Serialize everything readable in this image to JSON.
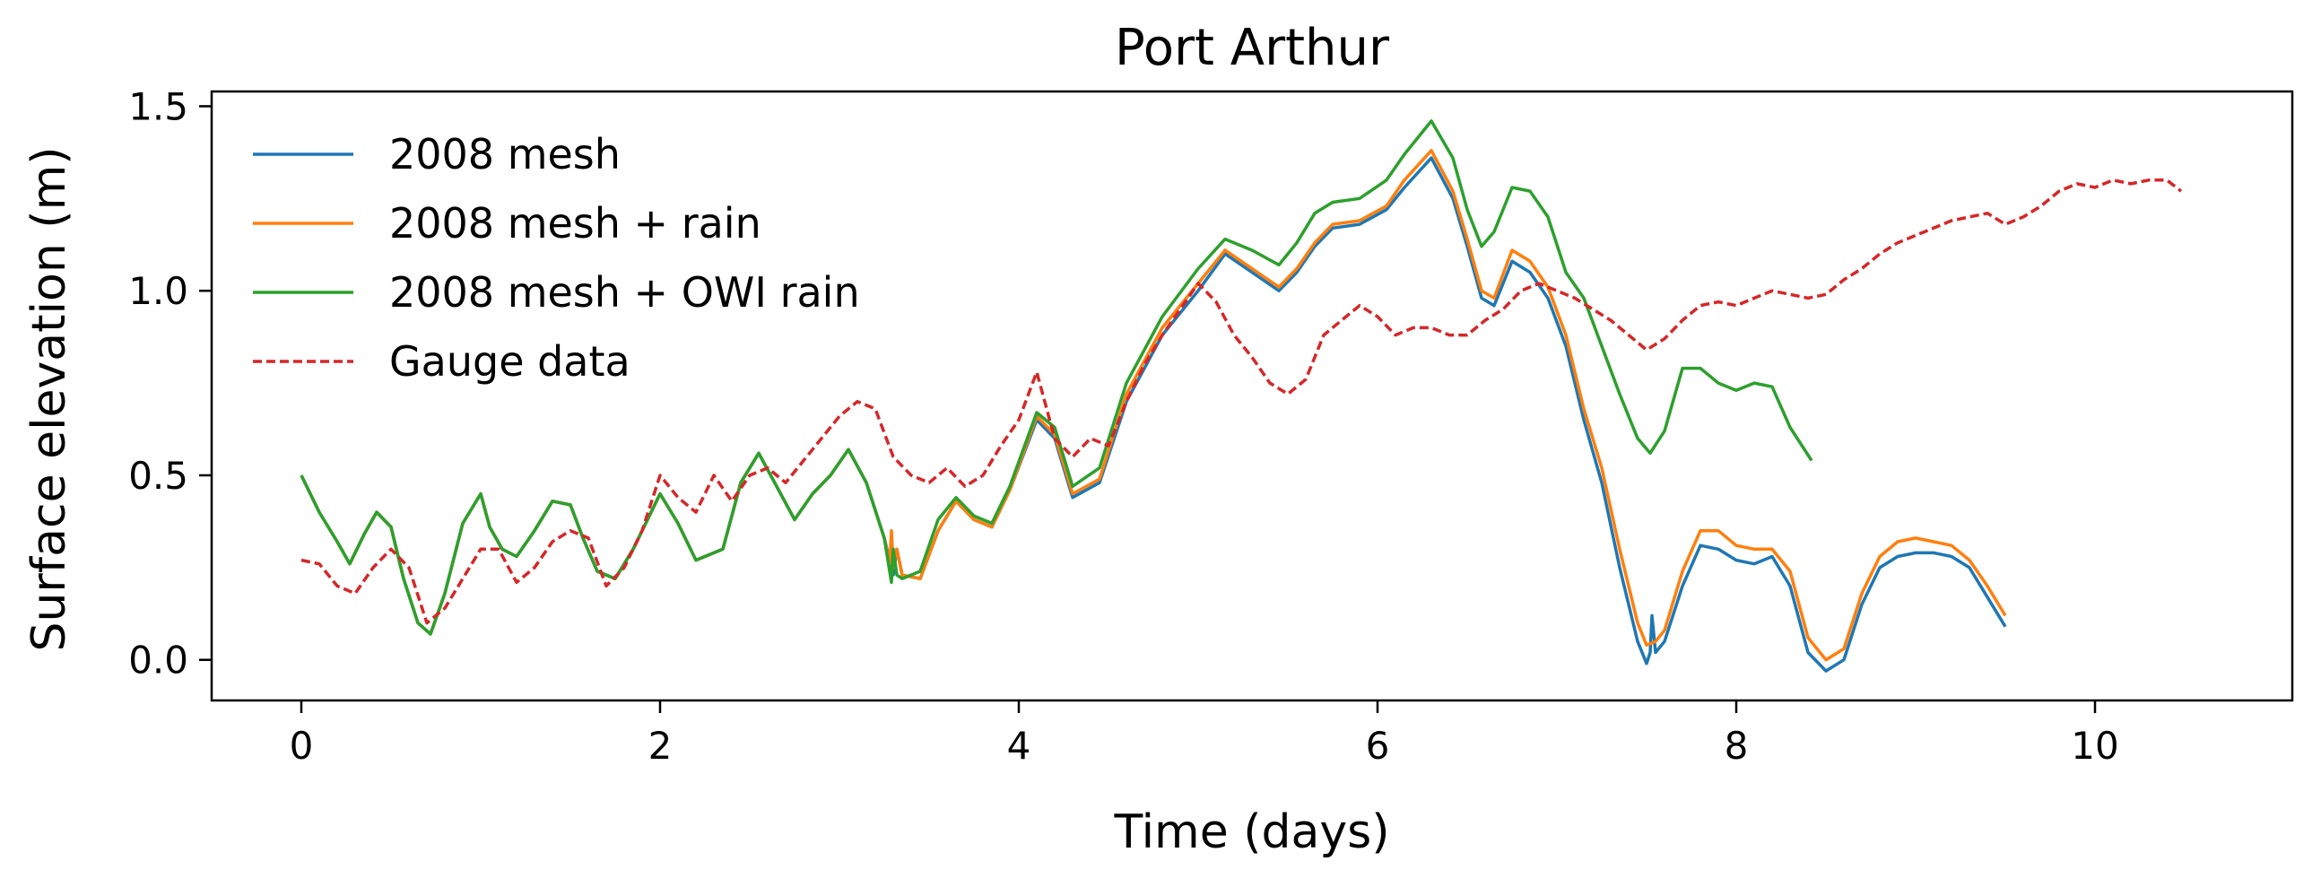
{
  "chart_data": {
    "type": "line",
    "title": "Port Arthur",
    "xlabel": "Time (days)",
    "ylabel": "Surface elevation (m)",
    "xlim": [
      -0.5,
      11.1
    ],
    "ylim": [
      -0.11,
      1.54
    ],
    "xticks": [
      0,
      2,
      4,
      6,
      8,
      10
    ],
    "yticks": [
      0.0,
      0.5,
      1.0,
      1.5
    ],
    "xtick_labels": [
      "0",
      "2",
      "4",
      "6",
      "8",
      "10"
    ],
    "ytick_labels": [
      "0.0",
      "0.5",
      "1.0",
      "1.5"
    ],
    "grid": false,
    "legend_position": "upper-left",
    "series": [
      {
        "name": "2008 mesh",
        "color": "#1f77b4",
        "style": "solid",
        "x": [
          0.0,
          0.1,
          0.2,
          0.27,
          0.35,
          0.42,
          0.5,
          0.57,
          0.65,
          0.72,
          0.8,
          0.9,
          1.0,
          1.05,
          1.12,
          1.2,
          1.3,
          1.4,
          1.5,
          1.57,
          1.65,
          1.75,
          1.85,
          2.0,
          2.1,
          2.2,
          2.35,
          2.45,
          2.55,
          2.65,
          2.75,
          2.85,
          2.95,
          3.05,
          3.15,
          3.25,
          3.29,
          3.3,
          3.32,
          3.35,
          3.45,
          3.55,
          3.65,
          3.75,
          3.85,
          3.95,
          4.1,
          4.2,
          4.3,
          4.45,
          4.6,
          4.8,
          5.0,
          5.15,
          5.3,
          5.45,
          5.55,
          5.65,
          5.75,
          5.9,
          6.05,
          6.15,
          6.3,
          6.42,
          6.5,
          6.58,
          6.65,
          6.75,
          6.85,
          6.95,
          7.05,
          7.15,
          7.25,
          7.35,
          7.45,
          7.5,
          7.52,
          7.53,
          7.55,
          7.6,
          7.7,
          7.8,
          7.9,
          8.0,
          8.1,
          8.2,
          8.3,
          8.4,
          8.5,
          8.6,
          8.7,
          8.8,
          8.9,
          9.0,
          9.1,
          9.2,
          9.3,
          9.4,
          9.5
        ],
        "y": [
          0.5,
          0.4,
          0.32,
          0.26,
          0.34,
          0.4,
          0.36,
          0.22,
          0.1,
          0.07,
          0.18,
          0.37,
          0.45,
          0.36,
          0.3,
          0.28,
          0.35,
          0.43,
          0.42,
          0.33,
          0.24,
          0.22,
          0.3,
          0.45,
          0.37,
          0.27,
          0.3,
          0.48,
          0.56,
          0.47,
          0.38,
          0.45,
          0.5,
          0.57,
          0.48,
          0.33,
          0.25,
          0.23,
          0.3,
          0.23,
          0.22,
          0.35,
          0.43,
          0.38,
          0.36,
          0.46,
          0.65,
          0.6,
          0.44,
          0.48,
          0.7,
          0.88,
          1.0,
          1.1,
          1.05,
          1.0,
          1.05,
          1.12,
          1.17,
          1.18,
          1.22,
          1.28,
          1.36,
          1.25,
          1.12,
          0.98,
          0.96,
          1.08,
          1.05,
          0.98,
          0.85,
          0.65,
          0.48,
          0.25,
          0.05,
          -0.01,
          0.02,
          0.12,
          0.02,
          0.05,
          0.2,
          0.31,
          0.3,
          0.27,
          0.26,
          0.28,
          0.2,
          0.02,
          -0.03,
          0.0,
          0.15,
          0.25,
          0.28,
          0.29,
          0.29,
          0.28,
          0.25,
          0.17,
          0.09
        ]
      },
      {
        "name": "2008 mesh + rain",
        "color": "#ff7f0e",
        "style": "solid",
        "x": [
          0.0,
          0.1,
          0.2,
          0.27,
          0.35,
          0.42,
          0.5,
          0.57,
          0.65,
          0.72,
          0.8,
          0.9,
          1.0,
          1.05,
          1.12,
          1.2,
          1.3,
          1.4,
          1.5,
          1.57,
          1.65,
          1.75,
          1.85,
          2.0,
          2.1,
          2.2,
          2.35,
          2.45,
          2.55,
          2.65,
          2.75,
          2.85,
          2.95,
          3.05,
          3.15,
          3.25,
          3.28,
          3.29,
          3.3,
          3.32,
          3.35,
          3.45,
          3.55,
          3.65,
          3.75,
          3.85,
          3.95,
          4.1,
          4.2,
          4.3,
          4.45,
          4.6,
          4.8,
          5.0,
          5.15,
          5.3,
          5.45,
          5.55,
          5.65,
          5.75,
          5.9,
          6.05,
          6.15,
          6.3,
          6.42,
          6.5,
          6.58,
          6.65,
          6.75,
          6.85,
          6.95,
          7.05,
          7.15,
          7.25,
          7.35,
          7.45,
          7.5,
          7.55,
          7.6,
          7.7,
          7.8,
          7.9,
          8.0,
          8.1,
          8.2,
          8.3,
          8.4,
          8.5,
          8.6,
          8.7,
          8.8,
          8.9,
          9.0,
          9.1,
          9.2,
          9.3,
          9.4,
          9.5
        ],
        "y": [
          0.5,
          0.4,
          0.32,
          0.26,
          0.34,
          0.4,
          0.36,
          0.22,
          0.1,
          0.07,
          0.18,
          0.37,
          0.45,
          0.36,
          0.3,
          0.28,
          0.35,
          0.43,
          0.42,
          0.33,
          0.24,
          0.22,
          0.3,
          0.45,
          0.37,
          0.27,
          0.3,
          0.48,
          0.56,
          0.47,
          0.38,
          0.45,
          0.5,
          0.57,
          0.48,
          0.33,
          0.26,
          0.35,
          0.25,
          0.3,
          0.23,
          0.22,
          0.35,
          0.43,
          0.38,
          0.36,
          0.46,
          0.66,
          0.61,
          0.45,
          0.49,
          0.72,
          0.9,
          1.02,
          1.11,
          1.06,
          1.01,
          1.06,
          1.13,
          1.18,
          1.19,
          1.23,
          1.3,
          1.38,
          1.27,
          1.14,
          1.0,
          0.98,
          1.11,
          1.08,
          1.01,
          0.88,
          0.68,
          0.52,
          0.3,
          0.1,
          0.04,
          0.05,
          0.08,
          0.24,
          0.35,
          0.35,
          0.31,
          0.3,
          0.3,
          0.24,
          0.06,
          0.0,
          0.03,
          0.18,
          0.28,
          0.32,
          0.33,
          0.32,
          0.31,
          0.27,
          0.2,
          0.12
        ]
      },
      {
        "name": "2008 mesh + OWI rain",
        "color": "#2ca02c",
        "style": "solid",
        "x": [
          0.0,
          0.1,
          0.2,
          0.27,
          0.35,
          0.42,
          0.5,
          0.57,
          0.65,
          0.72,
          0.8,
          0.9,
          1.0,
          1.05,
          1.12,
          1.2,
          1.3,
          1.4,
          1.5,
          1.57,
          1.65,
          1.75,
          1.85,
          2.0,
          2.1,
          2.2,
          2.35,
          2.45,
          2.55,
          2.65,
          2.75,
          2.85,
          2.95,
          3.05,
          3.15,
          3.25,
          3.29,
          3.3,
          3.32,
          3.35,
          3.45,
          3.55,
          3.65,
          3.75,
          3.85,
          3.95,
          4.1,
          4.2,
          4.3,
          4.45,
          4.6,
          4.8,
          5.0,
          5.15,
          5.3,
          5.45,
          5.55,
          5.65,
          5.75,
          5.9,
          6.05,
          6.15,
          6.3,
          6.42,
          6.5,
          6.58,
          6.65,
          6.75,
          6.85,
          6.95,
          7.05,
          7.15,
          7.25,
          7.35,
          7.45,
          7.52,
          7.6,
          7.7,
          7.8,
          7.9,
          8.0,
          8.1,
          8.2,
          8.3,
          8.42
        ],
        "y": [
          0.5,
          0.4,
          0.32,
          0.26,
          0.34,
          0.4,
          0.36,
          0.22,
          0.1,
          0.07,
          0.18,
          0.37,
          0.45,
          0.36,
          0.3,
          0.28,
          0.35,
          0.43,
          0.42,
          0.33,
          0.24,
          0.22,
          0.3,
          0.45,
          0.37,
          0.27,
          0.3,
          0.48,
          0.56,
          0.47,
          0.38,
          0.45,
          0.5,
          0.57,
          0.48,
          0.33,
          0.21,
          0.3,
          0.23,
          0.22,
          0.24,
          0.38,
          0.44,
          0.39,
          0.37,
          0.47,
          0.67,
          0.63,
          0.47,
          0.52,
          0.75,
          0.93,
          1.06,
          1.14,
          1.11,
          1.07,
          1.13,
          1.21,
          1.24,
          1.25,
          1.3,
          1.37,
          1.46,
          1.36,
          1.22,
          1.12,
          1.16,
          1.28,
          1.27,
          1.2,
          1.05,
          0.98,
          0.85,
          0.72,
          0.6,
          0.56,
          0.62,
          0.79,
          0.79,
          0.75,
          0.73,
          0.75,
          0.74,
          0.63,
          0.54
        ]
      },
      {
        "name": "Gauge data",
        "color": "#d62728",
        "style": "dashed",
        "x": [
          0.0,
          0.1,
          0.2,
          0.3,
          0.4,
          0.5,
          0.6,
          0.7,
          0.8,
          0.9,
          1.0,
          1.1,
          1.2,
          1.3,
          1.4,
          1.5,
          1.6,
          1.7,
          1.8,
          1.9,
          2.0,
          2.1,
          2.2,
          2.3,
          2.4,
          2.5,
          2.6,
          2.7,
          2.8,
          2.9,
          3.0,
          3.1,
          3.2,
          3.3,
          3.4,
          3.5,
          3.6,
          3.7,
          3.8,
          3.9,
          4.0,
          4.1,
          4.2,
          4.3,
          4.4,
          4.5,
          4.6,
          4.7,
          4.8,
          4.9,
          5.0,
          5.1,
          5.2,
          5.3,
          5.4,
          5.5,
          5.6,
          5.7,
          5.8,
          5.9,
          6.0,
          6.1,
          6.2,
          6.3,
          6.4,
          6.5,
          6.6,
          6.7,
          6.8,
          6.9,
          7.0,
          7.1,
          7.2,
          7.3,
          7.4,
          7.5,
          7.6,
          7.7,
          7.8,
          7.9,
          8.0,
          8.1,
          8.2,
          8.3,
          8.4,
          8.5,
          8.6,
          8.7,
          8.8,
          8.9,
          9.0,
          9.1,
          9.2,
          9.3,
          9.4,
          9.5,
          9.6,
          9.7,
          9.8,
          9.9,
          10.0,
          10.1,
          10.2,
          10.3,
          10.4,
          10.48
        ],
        "y": [
          0.27,
          0.26,
          0.2,
          0.18,
          0.25,
          0.3,
          0.25,
          0.1,
          0.14,
          0.22,
          0.3,
          0.3,
          0.21,
          0.25,
          0.32,
          0.35,
          0.33,
          0.2,
          0.25,
          0.35,
          0.5,
          0.44,
          0.4,
          0.5,
          0.43,
          0.5,
          0.52,
          0.48,
          0.54,
          0.6,
          0.66,
          0.7,
          0.68,
          0.55,
          0.5,
          0.48,
          0.52,
          0.47,
          0.5,
          0.58,
          0.65,
          0.78,
          0.6,
          0.55,
          0.6,
          0.58,
          0.7,
          0.8,
          0.88,
          0.95,
          1.02,
          0.97,
          0.88,
          0.82,
          0.75,
          0.72,
          0.76,
          0.88,
          0.92,
          0.96,
          0.93,
          0.88,
          0.9,
          0.9,
          0.88,
          0.88,
          0.92,
          0.95,
          1.0,
          1.02,
          1.0,
          0.98,
          0.95,
          0.92,
          0.88,
          0.84,
          0.87,
          0.92,
          0.96,
          0.97,
          0.96,
          0.98,
          1.0,
          0.99,
          0.98,
          0.99,
          1.03,
          1.06,
          1.1,
          1.13,
          1.15,
          1.17,
          1.19,
          1.2,
          1.21,
          1.18,
          1.2,
          1.23,
          1.27,
          1.29,
          1.28,
          1.3,
          1.29,
          1.3,
          1.3,
          1.27
        ]
      }
    ]
  }
}
